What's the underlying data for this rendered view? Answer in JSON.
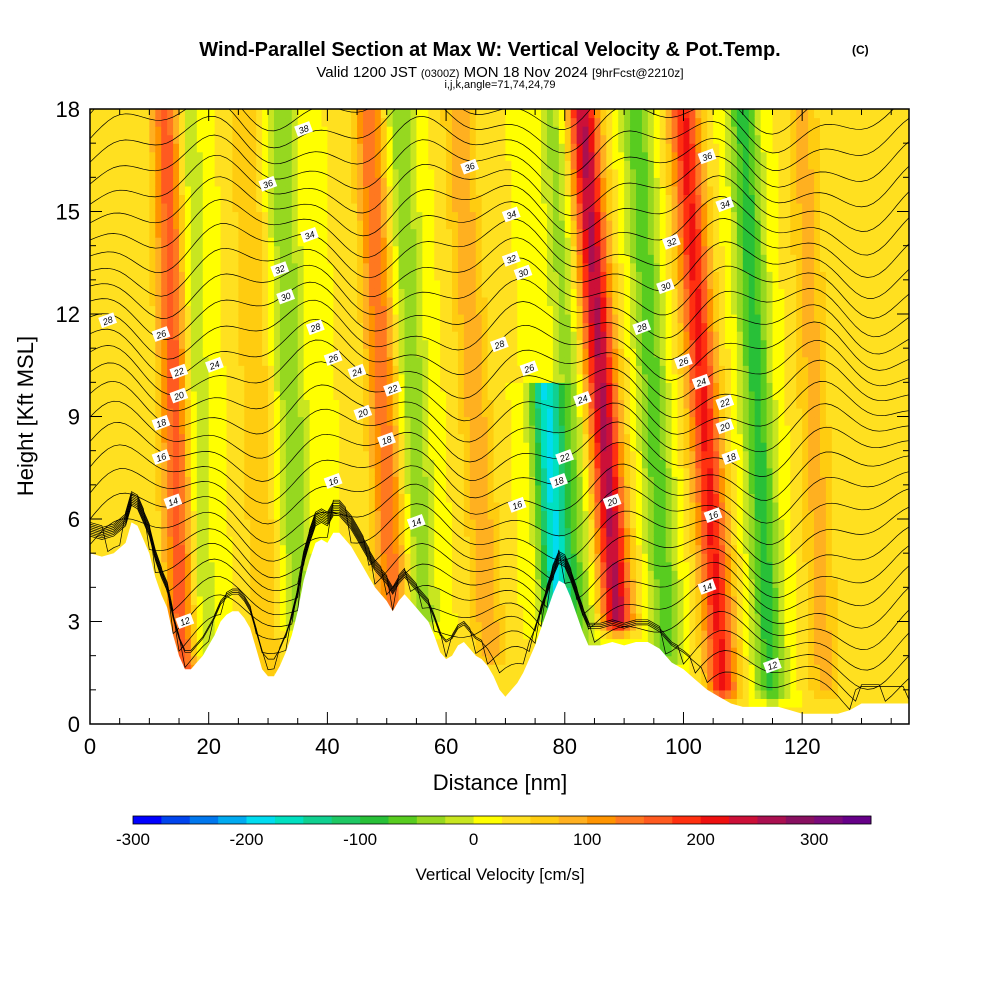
{
  "chart_data": {
    "type": "heatmap",
    "title": "Wind-Parallel Section at Max W: Vertical Velocity & Pot.Temp.",
    "title_mark": "(C)",
    "subtitle_parts": [
      "Valid 1200 JST",
      "(0300Z)",
      "MON 18 Nov 2024",
      "[9hrFcst@2210z]"
    ],
    "subtitle2": "i,j,k,angle=71,74,24,79",
    "xlabel": "Distance [nm]",
    "ylabel": "Height [Kft MSL]",
    "xlim": [
      0,
      138
    ],
    "ylim": [
      0,
      18
    ],
    "xticks": [
      0,
      20,
      40,
      60,
      80,
      100,
      120
    ],
    "yticks": [
      0,
      3,
      6,
      9,
      12,
      15,
      18
    ],
    "colorbar": {
      "label": "Vertical Velocity [cm/s]",
      "range": [
        -300,
        350
      ],
      "step": 25,
      "ticks": [
        -300,
        -200,
        -100,
        0,
        100,
        200,
        300
      ],
      "colors": [
        "#0000ff",
        "#0044ee",
        "#0077ee",
        "#00aaf0",
        "#00dcf0",
        "#00e0c0",
        "#10d090",
        "#1ec864",
        "#28c038",
        "#58cc20",
        "#96d820",
        "#c8e620",
        "#ffff00",
        "#ffe020",
        "#ffcc10",
        "#ffb020",
        "#ff9400",
        "#ff7820",
        "#ff5a20",
        "#ff3010",
        "#ee1010",
        "#cc1038",
        "#aa1050",
        "#881060",
        "#7a0a7a",
        "#660088"
      ]
    },
    "terrain_top_kft": [
      [
        0,
        5.0
      ],
      [
        2,
        4.9
      ],
      [
        4,
        5.0
      ],
      [
        6,
        5.3
      ],
      [
        7,
        5.9
      ],
      [
        8,
        5.8
      ],
      [
        9,
        5.4
      ],
      [
        10,
        5.0
      ],
      [
        11,
        4.3
      ],
      [
        12,
        3.8
      ],
      [
        13,
        3.4
      ],
      [
        14,
        2.6
      ],
      [
        15,
        2.0
      ],
      [
        16,
        1.6
      ],
      [
        17,
        1.6
      ],
      [
        18,
        1.8
      ],
      [
        19,
        2.0
      ],
      [
        20,
        2.3
      ],
      [
        21,
        2.6
      ],
      [
        22,
        3.0
      ],
      [
        23,
        3.2
      ],
      [
        24,
        3.3
      ],
      [
        25,
        3.3
      ],
      [
        26,
        3.1
      ],
      [
        27,
        2.8
      ],
      [
        28,
        2.2
      ],
      [
        29,
        1.6
      ],
      [
        30,
        1.4
      ],
      [
        31,
        1.4
      ],
      [
        32,
        1.7
      ],
      [
        33,
        2.1
      ],
      [
        34,
        2.6
      ],
      [
        35,
        3.3
      ],
      [
        36,
        4.2
      ],
      [
        37,
        4.8
      ],
      [
        38,
        5.3
      ],
      [
        39,
        5.4
      ],
      [
        40,
        5.3
      ],
      [
        41,
        5.6
      ],
      [
        42,
        5.6
      ],
      [
        43,
        5.4
      ],
      [
        44,
        5.2
      ],
      [
        45,
        4.9
      ],
      [
        46,
        4.6
      ],
      [
        47,
        4.3
      ],
      [
        48,
        4.0
      ],
      [
        49,
        3.8
      ],
      [
        50,
        3.6
      ],
      [
        51,
        3.3
      ],
      [
        52,
        3.6
      ],
      [
        53,
        3.8
      ],
      [
        54,
        3.6
      ],
      [
        55,
        3.4
      ],
      [
        56,
        3.2
      ],
      [
        57,
        3.0
      ],
      [
        58,
        2.6
      ],
      [
        59,
        2.1
      ],
      [
        60,
        1.9
      ],
      [
        61,
        2.0
      ],
      [
        62,
        2.3
      ],
      [
        63,
        2.4
      ],
      [
        64,
        2.2
      ],
      [
        65,
        2.0
      ],
      [
        66,
        1.9
      ],
      [
        67,
        1.7
      ],
      [
        68,
        1.4
      ],
      [
        69,
        1.0
      ],
      [
        70,
        0.8
      ],
      [
        71,
        1.0
      ],
      [
        72,
        1.2
      ],
      [
        73,
        1.5
      ],
      [
        74,
        1.9
      ],
      [
        75,
        2.3
      ],
      [
        76,
        2.8
      ],
      [
        77,
        3.3
      ],
      [
        78,
        3.8
      ],
      [
        79,
        4.2
      ],
      [
        80,
        4.1
      ],
      [
        81,
        3.7
      ],
      [
        82,
        3.2
      ],
      [
        83,
        2.7
      ],
      [
        84,
        2.3
      ],
      [
        86,
        2.3
      ],
      [
        88,
        2.4
      ],
      [
        90,
        2.3
      ],
      [
        92,
        2.4
      ],
      [
        94,
        2.4
      ],
      [
        96,
        2.2
      ],
      [
        98,
        1.8
      ],
      [
        100,
        1.6
      ],
      [
        102,
        1.3
      ],
      [
        104,
        1.0
      ],
      [
        106,
        0.8
      ],
      [
        108,
        0.6
      ],
      [
        110,
        0.5
      ],
      [
        112,
        0.5
      ],
      [
        114,
        0.5
      ],
      [
        116,
        0.5
      ],
      [
        118,
        0.4
      ],
      [
        120,
        0.3
      ],
      [
        122,
        0.3
      ],
      [
        124,
        0.3
      ],
      [
        126,
        0.3
      ],
      [
        128,
        0.4
      ],
      [
        130,
        0.6
      ],
      [
        132,
        0.6
      ],
      [
        134,
        0.6
      ],
      [
        136,
        0.6
      ],
      [
        138,
        0.6
      ]
    ],
    "updraft_bands": [
      {
        "x_base": 16,
        "x_top": 13,
        "peak_cms": 150,
        "z_min": 1.5,
        "z_max": 18
      },
      {
        "x_base": 30,
        "x_top": 26,
        "peak_cms": 50,
        "z_min": 1.5,
        "z_max": 18
      },
      {
        "x_base": 52,
        "x_top": 47,
        "peak_cms": 120,
        "z_min": 3,
        "z_max": 18
      },
      {
        "x_base": 68,
        "x_top": 62,
        "peak_cms": 70,
        "z_min": 2,
        "z_max": 18
      },
      {
        "x_base": 90,
        "x_top": 83,
        "peak_cms": 230,
        "z_min": 3,
        "z_max": 18
      },
      {
        "x_base": 107,
        "x_top": 100,
        "peak_cms": 180,
        "z_min": 1,
        "z_max": 18
      },
      {
        "x_base": 124,
        "x_top": 120,
        "peak_cms": 60,
        "z_min": 1,
        "z_max": 18
      }
    ],
    "downdraft_bands": [
      {
        "x_base": 19,
        "x_top": 16,
        "peak_cms": -60,
        "z_min": 2,
        "z_max": 18
      },
      {
        "x_base": 36,
        "x_top": 32,
        "peak_cms": -70,
        "z_min": 3,
        "z_max": 18
      },
      {
        "x_base": 57,
        "x_top": 52,
        "peak_cms": -70,
        "z_min": 3,
        "z_max": 18
      },
      {
        "x_base": 80,
        "x_top": 74,
        "peak_cms": -200,
        "z_min": 3,
        "z_max": 9.5
      },
      {
        "x_base": 84,
        "x_top": 78,
        "peak_cms": -60,
        "z_min": 2.3,
        "z_max": 18
      },
      {
        "x_base": 98,
        "x_top": 92,
        "peak_cms": -90,
        "z_min": 2,
        "z_max": 18
      },
      {
        "x_base": 115,
        "x_top": 110,
        "peak_cms": -110,
        "z_min": 1,
        "z_max": 18
      }
    ],
    "contour_labels": [
      {
        "x": 36,
        "z": 17.4,
        "text": "38"
      },
      {
        "x": 30,
        "z": 15.8,
        "text": "36"
      },
      {
        "x": 37,
        "z": 14.3,
        "text": "34"
      },
      {
        "x": 32,
        "z": 13.3,
        "text": "32"
      },
      {
        "x": 33,
        "z": 12.5,
        "text": "30"
      },
      {
        "x": 3,
        "z": 11.8,
        "text": "28"
      },
      {
        "x": 12,
        "z": 11.4,
        "text": "26"
      },
      {
        "x": 15,
        "z": 10.3,
        "text": "22"
      },
      {
        "x": 21,
        "z": 10.5,
        "text": "24"
      },
      {
        "x": 15,
        "z": 9.6,
        "text": "20"
      },
      {
        "x": 12,
        "z": 8.8,
        "text": "18"
      },
      {
        "x": 12,
        "z": 7.8,
        "text": "16"
      },
      {
        "x": 14,
        "z": 6.5,
        "text": "14"
      },
      {
        "x": 16,
        "z": 3.0,
        "text": "12"
      },
      {
        "x": 38,
        "z": 11.6,
        "text": "28"
      },
      {
        "x": 41,
        "z": 10.7,
        "text": "26"
      },
      {
        "x": 45,
        "z": 10.3,
        "text": "24"
      },
      {
        "x": 46,
        "z": 9.1,
        "text": "20"
      },
      {
        "x": 51,
        "z": 9.8,
        "text": "22"
      },
      {
        "x": 50,
        "z": 8.3,
        "text": "18"
      },
      {
        "x": 41,
        "z": 7.1,
        "text": "16"
      },
      {
        "x": 55,
        "z": 5.9,
        "text": "14"
      },
      {
        "x": 64,
        "z": 16.3,
        "text": "36"
      },
      {
        "x": 71,
        "z": 14.9,
        "text": "34"
      },
      {
        "x": 71,
        "z": 13.6,
        "text": "32"
      },
      {
        "x": 73,
        "z": 13.2,
        "text": "30"
      },
      {
        "x": 69,
        "z": 11.1,
        "text": "28"
      },
      {
        "x": 74,
        "z": 10.4,
        "text": "26"
      },
      {
        "x": 83,
        "z": 9.5,
        "text": "24"
      },
      {
        "x": 80,
        "z": 7.8,
        "text": "22"
      },
      {
        "x": 79,
        "z": 7.1,
        "text": "18"
      },
      {
        "x": 72,
        "z": 6.4,
        "text": "16"
      },
      {
        "x": 88,
        "z": 6.5,
        "text": "20"
      },
      {
        "x": 104,
        "z": 16.6,
        "text": "36"
      },
      {
        "x": 107,
        "z": 15.2,
        "text": "34"
      },
      {
        "x": 98,
        "z": 14.1,
        "text": "32"
      },
      {
        "x": 97,
        "z": 12.8,
        "text": "30"
      },
      {
        "x": 93,
        "z": 11.6,
        "text": "28"
      },
      {
        "x": 100,
        "z": 10.6,
        "text": "26"
      },
      {
        "x": 103,
        "z": 10.0,
        "text": "24"
      },
      {
        "x": 107,
        "z": 9.4,
        "text": "22"
      },
      {
        "x": 107,
        "z": 8.7,
        "text": "20"
      },
      {
        "x": 108,
        "z": 7.8,
        "text": "18"
      },
      {
        "x": 105,
        "z": 6.1,
        "text": "16"
      },
      {
        "x": 104,
        "z": 4.0,
        "text": "14"
      },
      {
        "x": 115,
        "z": 1.7,
        "text": "12"
      }
    ]
  }
}
